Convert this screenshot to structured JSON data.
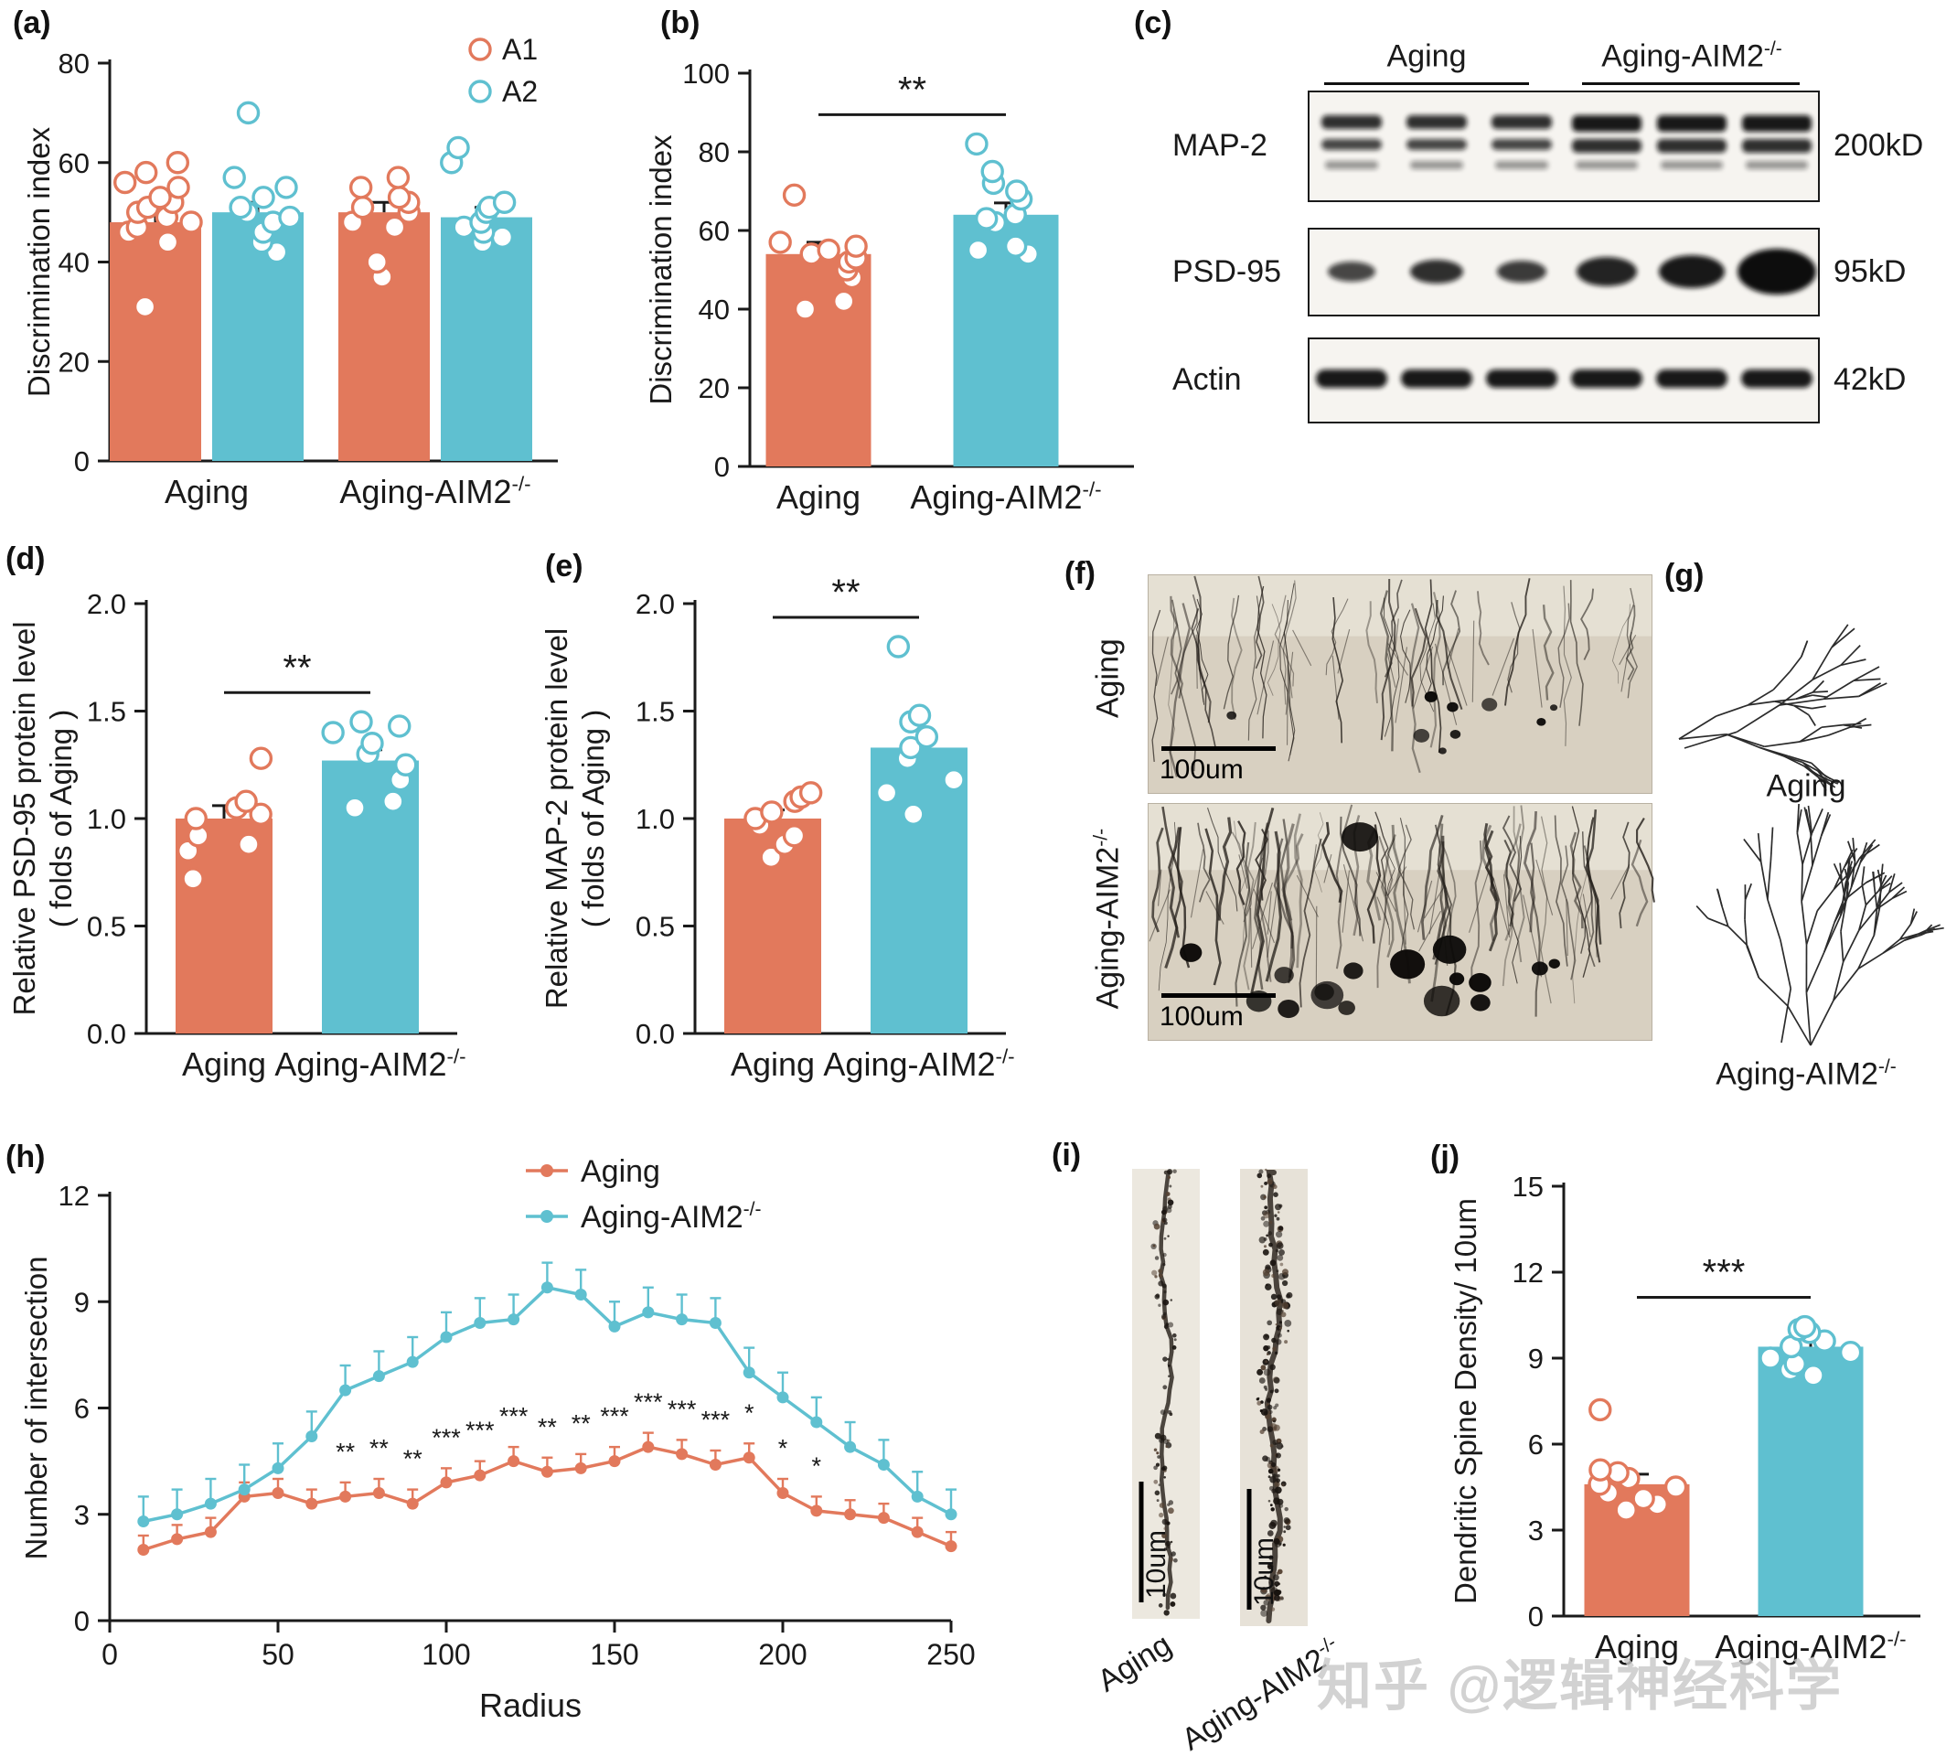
{
  "watermark": "知乎 @逻辑神经科学",
  "colors": {
    "orange": "#E2795C",
    "teal": "#5FC0D0",
    "axis": "#1a1a1a"
  },
  "panels": {
    "a": {
      "label": "(a)"
    },
    "b": {
      "label": "(b)"
    },
    "c": {
      "label": "(c)",
      "headers": [
        {
          "text": "Aging",
          "sup": ""
        },
        {
          "text": "Aging-AIM2",
          "sup": "-/-"
        }
      ],
      "rows": [
        {
          "name": "MAP-2",
          "kd": "200kD"
        },
        {
          "name": "PSD-95",
          "kd": "95kD"
        },
        {
          "name": "Actin",
          "kd": "42kD"
        }
      ]
    },
    "d": {
      "label": "(d)"
    },
    "e": {
      "label": "(e)"
    },
    "f": {
      "label": "(f)",
      "row_labels": [
        {
          "text": "Aging",
          "sup": ""
        },
        {
          "text": "Aging-AIM2",
          "sup": "-/-"
        }
      ],
      "scale_bar": "100um"
    },
    "g": {
      "label": "(g)",
      "trace_labels": [
        {
          "text": "Aging",
          "sup": ""
        },
        {
          "text": "Aging-AIM2",
          "sup": "-/-"
        }
      ]
    },
    "h": {
      "label": "(h)"
    },
    "i": {
      "label": "(i)",
      "scale_bar": "10um",
      "labels": [
        {
          "text": "Aging",
          "sup": ""
        },
        {
          "text": "Aging-AIM2",
          "sup": "-/-"
        }
      ]
    },
    "j": {
      "label": "(j)"
    }
  },
  "chart_data": [
    {
      "id": "a",
      "type": "bar",
      "title": "",
      "ylabel": "Discrimination index",
      "ylim": [
        0,
        80
      ],
      "yticks": [
        0,
        20,
        40,
        60,
        80
      ],
      "groups": [
        {
          "text": "Aging",
          "sup": ""
        },
        {
          "text": "Aging-AIM2",
          "sup": "-/-"
        }
      ],
      "legend": [
        {
          "name": "A1",
          "color": "orange"
        },
        {
          "name": "A2",
          "color": "teal"
        }
      ],
      "series": [
        {
          "name": "A1",
          "color": "orange",
          "bars": [
            48,
            50
          ],
          "err": [
            2,
            2
          ],
          "points": [
            [
              31,
              44,
              46,
              47,
              48,
              49,
              50,
              51,
              52,
              53,
              55,
              56,
              58,
              60
            ],
            [
              37,
              40,
              47,
              48,
              50,
              51,
              52,
              53,
              55,
              57
            ]
          ]
        },
        {
          "name": "A2",
          "color": "teal",
          "bars": [
            50,
            49
          ],
          "err": [
            2,
            2
          ],
          "points": [
            [
              42,
              44,
              46,
              48,
              49,
              50,
              51,
              53,
              55,
              57,
              70
            ],
            [
              44,
              45,
              46,
              47,
              48,
              50,
              51,
              52,
              60,
              63
            ]
          ]
        }
      ]
    },
    {
      "id": "b",
      "type": "bar",
      "ylabel": "Discrimination index",
      "ylim": [
        0,
        100
      ],
      "yticks": [
        0,
        20,
        40,
        60,
        80,
        100
      ],
      "significance": "**",
      "categories": [
        {
          "text": "Aging",
          "sup": ""
        },
        {
          "text": "Aging-AIM2",
          "sup": "-/-"
        }
      ],
      "bars": [
        {
          "name": "Aging",
          "color": "orange",
          "value": 54,
          "err": 3,
          "points": [
            40,
            42,
            48,
            50,
            52,
            53,
            54,
            55,
            56,
            57,
            69
          ]
        },
        {
          "name": "Aging-AIM2-/-",
          "color": "teal",
          "value": 64,
          "err": 3,
          "points": [
            54,
            55,
            56,
            62,
            63,
            64,
            68,
            70,
            72,
            75,
            82
          ]
        }
      ]
    },
    {
      "id": "d",
      "type": "bar",
      "ylabel": [
        "Relative PSD-95 protein level",
        "( folds of Aging )"
      ],
      "ylim": [
        0,
        2
      ],
      "yticks": [
        0,
        0.5,
        1,
        1.5,
        2
      ],
      "significance": "**",
      "categories": [
        {
          "text": "Aging",
          "sup": ""
        },
        {
          "text": "Aging-AIM2",
          "sup": "-/-"
        }
      ],
      "bars": [
        {
          "name": "Aging",
          "color": "orange",
          "value": 1.0,
          "err": 0.06,
          "points": [
            0.72,
            0.85,
            0.88,
            0.92,
            1.0,
            1.02,
            1.05,
            1.08,
            1.28
          ]
        },
        {
          "name": "Aging-AIM2-/-",
          "color": "teal",
          "value": 1.27,
          "err": 0.05,
          "points": [
            1.05,
            1.08,
            1.18,
            1.25,
            1.3,
            1.35,
            1.4,
            1.43,
            1.45
          ]
        }
      ]
    },
    {
      "id": "e",
      "type": "bar",
      "ylabel": [
        "Relative MAP-2 protein level",
        "( folds of Aging )"
      ],
      "ylim": [
        0,
        2
      ],
      "yticks": [
        0,
        0.5,
        1,
        1.5,
        2
      ],
      "significance": "**",
      "categories": [
        {
          "text": "Aging",
          "sup": ""
        },
        {
          "text": "Aging-AIM2",
          "sup": "-/-"
        }
      ],
      "bars": [
        {
          "name": "Aging",
          "color": "orange",
          "value": 1.0,
          "err": 0.04,
          "points": [
            0.82,
            0.88,
            0.92,
            0.97,
            1.0,
            1.03,
            1.08,
            1.1,
            1.12
          ]
        },
        {
          "name": "Aging-AIM2-/-",
          "color": "teal",
          "value": 1.33,
          "err": 0.08,
          "points": [
            1.02,
            1.12,
            1.18,
            1.28,
            1.33,
            1.38,
            1.45,
            1.48,
            1.8
          ]
        }
      ]
    },
    {
      "id": "h",
      "type": "line",
      "xlabel": "Radius",
      "ylabel": "Number of intersection",
      "xlim": [
        0,
        250
      ],
      "xticks": [
        0,
        50,
        100,
        150,
        200,
        250
      ],
      "ylim": [
        0,
        12
      ],
      "yticks": [
        0,
        3,
        6,
        9,
        12
      ],
      "x": [
        10,
        20,
        30,
        40,
        50,
        60,
        70,
        80,
        90,
        100,
        110,
        120,
        130,
        140,
        150,
        160,
        170,
        180,
        190,
        200,
        210,
        220,
        230,
        240,
        250
      ],
      "series": [
        {
          "name": {
            "text": "Aging",
            "sup": ""
          },
          "color": "orange",
          "err": 0.4,
          "values": [
            2.0,
            2.3,
            2.5,
            3.5,
            3.6,
            3.3,
            3.5,
            3.6,
            3.3,
            3.9,
            4.1,
            4.5,
            4.2,
            4.3,
            4.5,
            4.9,
            4.7,
            4.4,
            4.6,
            3.6,
            3.1,
            3.0,
            2.9,
            2.5,
            2.1
          ]
        },
        {
          "name": {
            "text": "Aging-AIM2",
            "sup": "-/-"
          },
          "color": "teal",
          "err": 0.7,
          "values": [
            2.8,
            3.0,
            3.3,
            3.7,
            4.3,
            5.2,
            6.5,
            6.9,
            7.3,
            8.0,
            8.4,
            8.5,
            9.4,
            9.2,
            8.3,
            8.7,
            8.5,
            8.4,
            7.0,
            6.3,
            5.6,
            4.9,
            4.4,
            3.5,
            3.0
          ]
        }
      ],
      "significance": [
        {
          "x": 70,
          "label": "**"
        },
        {
          "x": 80,
          "label": "**"
        },
        {
          "x": 90,
          "label": "**"
        },
        {
          "x": 100,
          "label": "***"
        },
        {
          "x": 110,
          "label": "***"
        },
        {
          "x": 120,
          "label": "***"
        },
        {
          "x": 130,
          "label": "**"
        },
        {
          "x": 140,
          "label": "**"
        },
        {
          "x": 150,
          "label": "***"
        },
        {
          "x": 160,
          "label": "***"
        },
        {
          "x": 170,
          "label": "***"
        },
        {
          "x": 180,
          "label": "***"
        },
        {
          "x": 190,
          "label": "*"
        },
        {
          "x": 200,
          "label": "*"
        },
        {
          "x": 210,
          "label": "*"
        }
      ]
    },
    {
      "id": "j",
      "type": "bar",
      "ylabel": "Dendritic Spine Density/ 10um",
      "ylim": [
        0,
        15
      ],
      "yticks": [
        0,
        3,
        6,
        9,
        12,
        15
      ],
      "significance": "***",
      "categories": [
        {
          "text": "Aging",
          "sup": ""
        },
        {
          "text": "Aging-AIM2",
          "sup": "-/-"
        }
      ],
      "bars": [
        {
          "name": "Aging",
          "color": "orange",
          "value": 4.6,
          "err": 0.35,
          "points": [
            3.7,
            3.9,
            4.1,
            4.3,
            4.5,
            4.6,
            4.8,
            5.0,
            5.1,
            7.2
          ]
        },
        {
          "name": "Aging-AIM2-/-",
          "color": "teal",
          "value": 9.4,
          "err": 0.25,
          "points": [
            8.4,
            8.6,
            8.8,
            9.0,
            9.2,
            9.4,
            9.6,
            9.9,
            10.0,
            10.1
          ]
        }
      ]
    }
  ]
}
